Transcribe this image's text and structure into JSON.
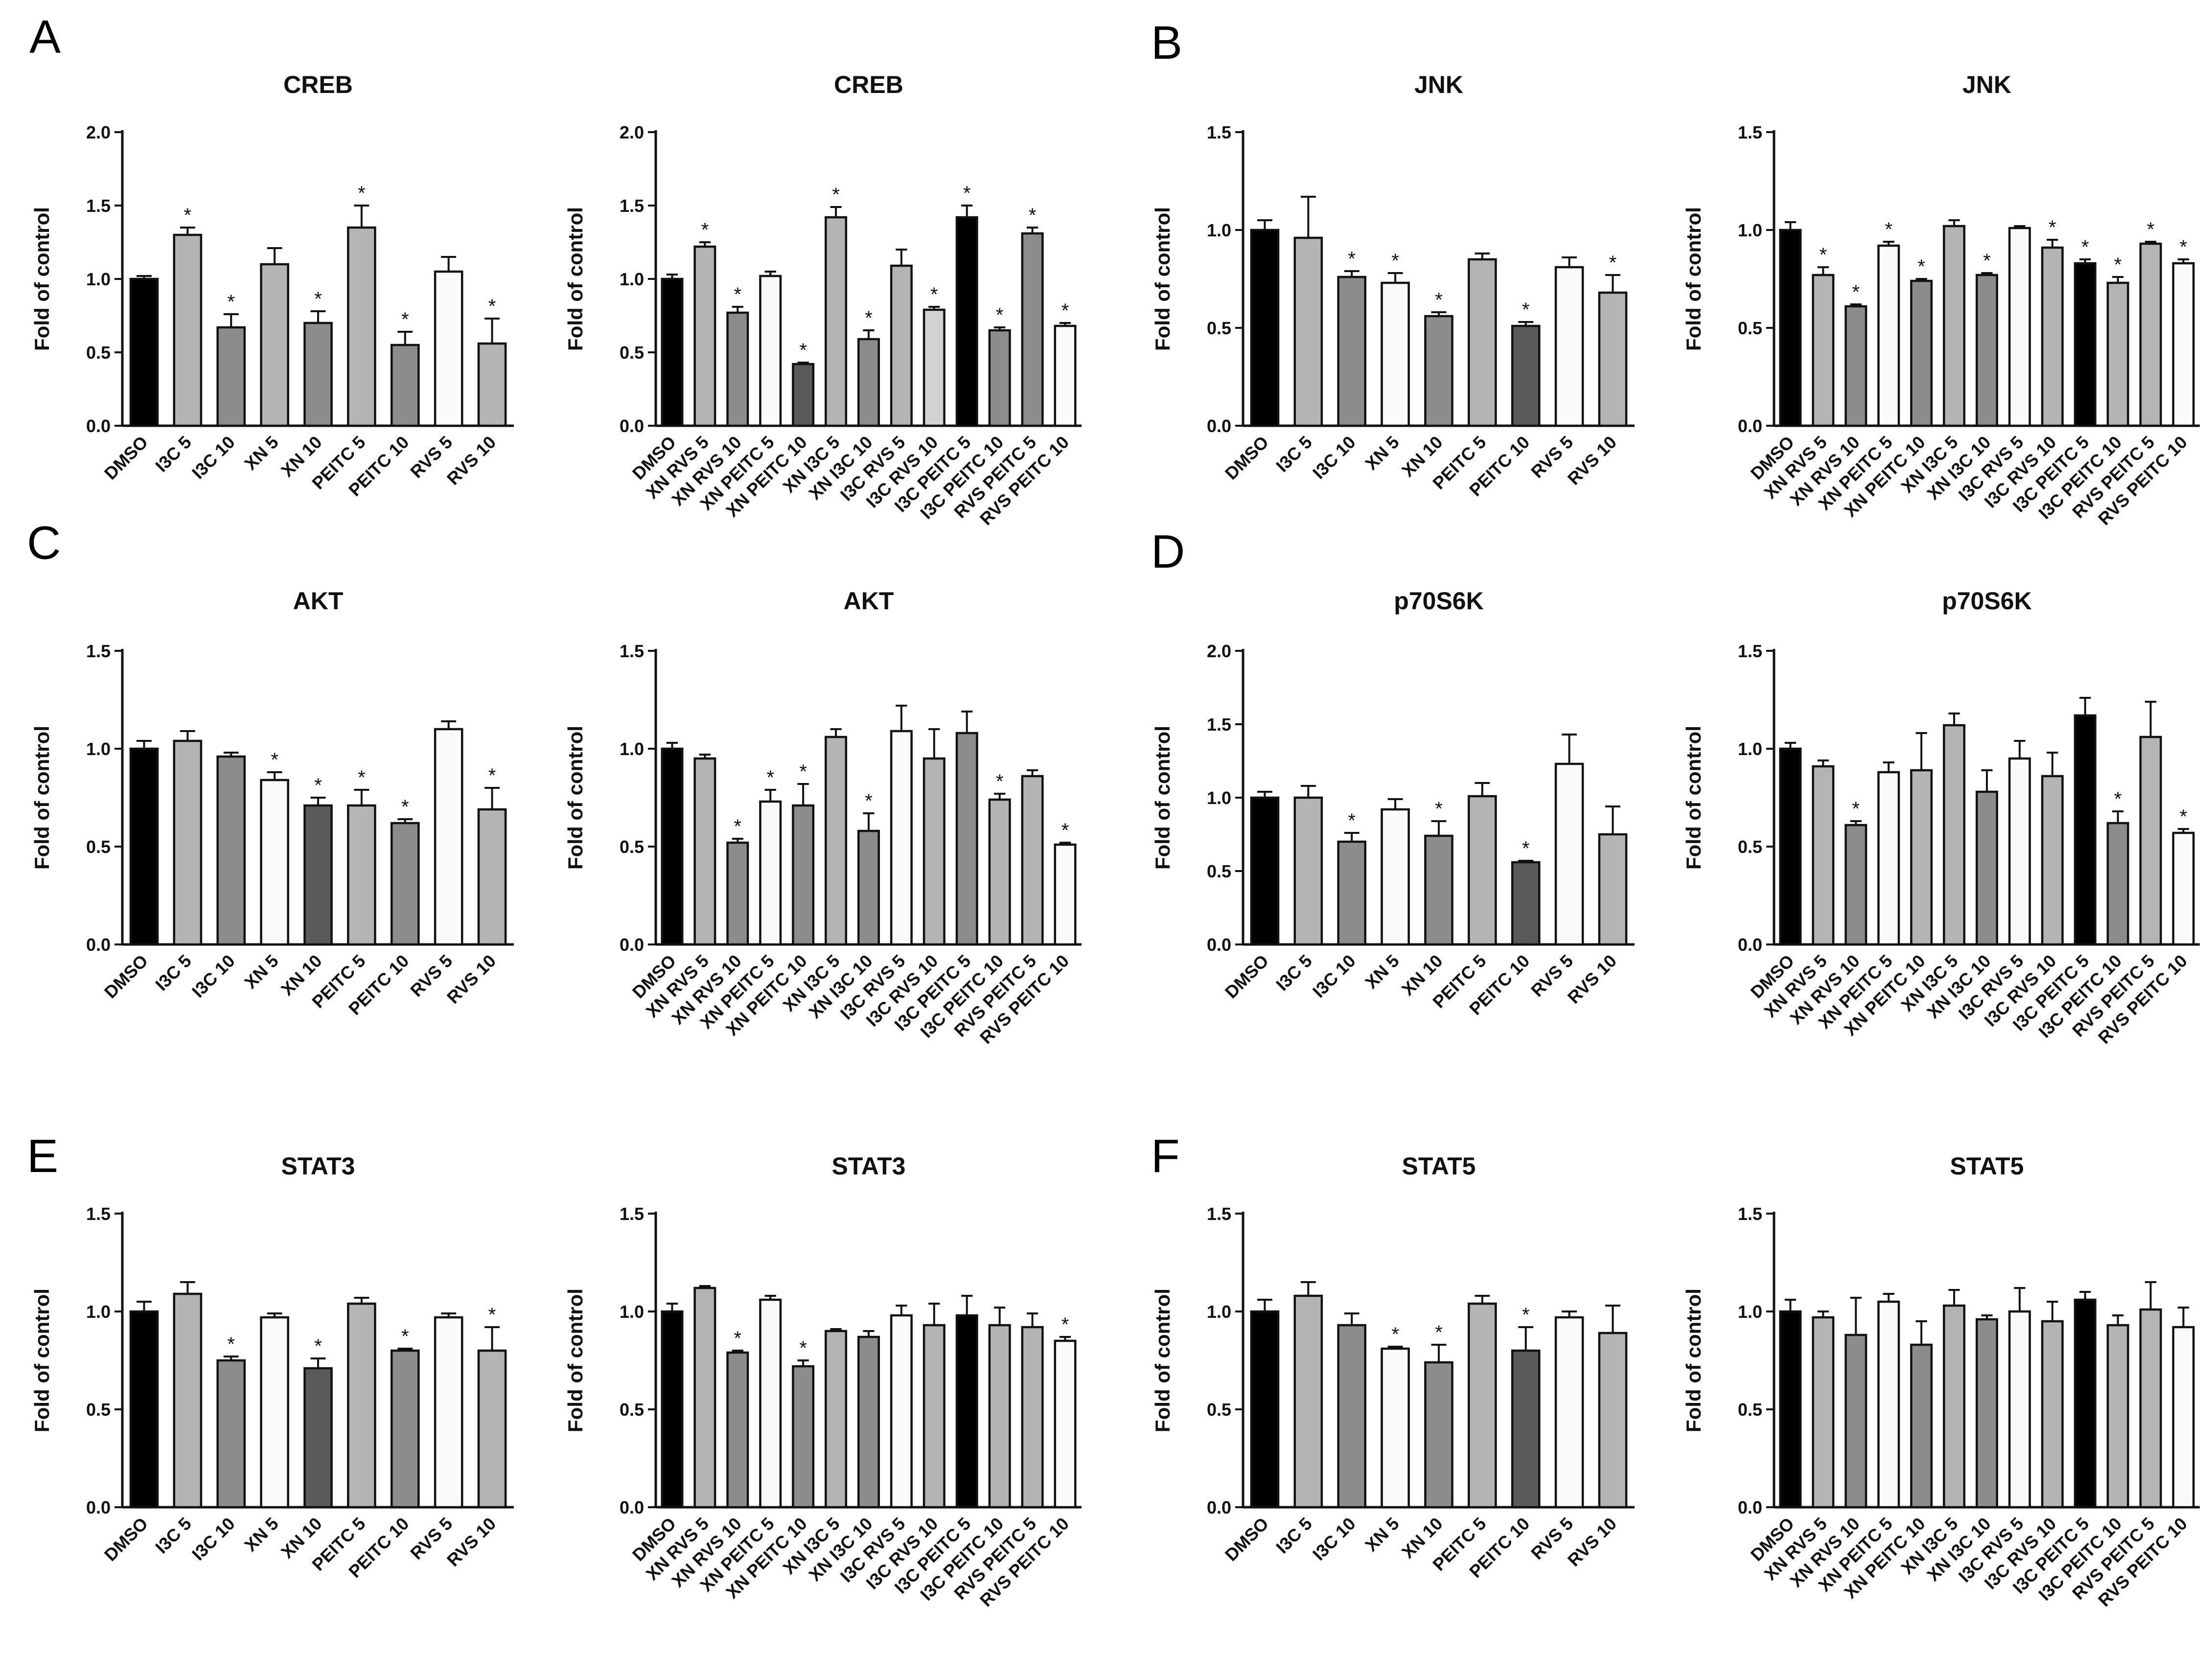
{
  "panels": [
    {
      "letter": "A"
    },
    {
      "letter": "B"
    },
    {
      "letter": "C"
    },
    {
      "letter": "D"
    },
    {
      "letter": "E"
    },
    {
      "letter": "F"
    }
  ],
  "colors": {
    "black": "#000000",
    "light": "#b4b4b4",
    "mid": "#8c8c8c",
    "white": "#fafafa",
    "dark": "#5a5a5a",
    "pale": "#d2d2d2"
  },
  "chart_data": [
    {
      "type": "bar",
      "panel": "A",
      "title": "CREB",
      "ylabel": "Fold of control",
      "ylim": [
        0,
        2.0
      ],
      "yticks": [
        "0.0",
        "0.5",
        "1.0",
        "1.5",
        "2.0"
      ],
      "categories": [
        "DMSO",
        "I3C 5",
        "I3C 10",
        "XN 5",
        "XN 10",
        "PEITC 5",
        "PEITC 10",
        "RVS 5",
        "RVS 10"
      ],
      "values": [
        1.0,
        1.3,
        0.67,
        1.1,
        0.7,
        1.35,
        0.55,
        1.05,
        0.56
      ],
      "errors": [
        0.02,
        0.05,
        0.09,
        0.11,
        0.08,
        0.15,
        0.09,
        0.1,
        0.17
      ],
      "significant": [
        false,
        true,
        true,
        false,
        true,
        true,
        true,
        false,
        true
      ],
      "bar_colors": [
        "black",
        "light",
        "mid",
        "light",
        "mid",
        "light",
        "mid",
        "white",
        "light"
      ]
    },
    {
      "type": "bar",
      "panel": "A",
      "title": "CREB",
      "ylabel": "Fold of control",
      "ylim": [
        0,
        2.0
      ],
      "yticks": [
        "0.0",
        "0.5",
        "1.0",
        "1.5",
        "2.0"
      ],
      "categories": [
        "DMSO",
        "XN RVS 5",
        "XN RVS 10",
        "XN PEITC 5",
        "XN PEITC 10",
        "XN I3C 5",
        "XN I3C 10",
        "I3C RVS 5",
        "I3C RVS 10",
        "I3C PEITC 5",
        "I3C PEITC 10",
        "RVS PEITC 5",
        "RVS PEITC 10"
      ],
      "values": [
        1.0,
        1.22,
        0.77,
        1.02,
        0.42,
        1.42,
        0.59,
        1.09,
        0.79,
        1.42,
        0.65,
        1.31,
        0.68
      ],
      "errors": [
        0.03,
        0.03,
        0.04,
        0.03,
        0.01,
        0.07,
        0.06,
        0.11,
        0.02,
        0.08,
        0.02,
        0.04,
        0.02
      ],
      "significant": [
        false,
        true,
        true,
        false,
        true,
        true,
        true,
        false,
        true,
        true,
        true,
        true,
        true
      ],
      "bar_colors": [
        "black",
        "light",
        "mid",
        "white",
        "dark",
        "light",
        "mid",
        "light",
        "pale",
        "black",
        "mid",
        "mid",
        "white"
      ]
    },
    {
      "type": "bar",
      "panel": "B",
      "title": "JNK",
      "ylabel": "Fold of control",
      "ylim": [
        0,
        1.5
      ],
      "yticks": [
        "0.0",
        "0.5",
        "1.0",
        "1.5"
      ],
      "categories": [
        "DMSO",
        "I3C 5",
        "I3C 10",
        "XN 5",
        "XN 10",
        "PEITC 5",
        "PEITC 10",
        "RVS 5",
        "RVS 10"
      ],
      "values": [
        1.0,
        0.96,
        0.76,
        0.73,
        0.56,
        0.85,
        0.51,
        0.81,
        0.68
      ],
      "errors": [
        0.05,
        0.21,
        0.03,
        0.05,
        0.02,
        0.03,
        0.02,
        0.05,
        0.09
      ],
      "significant": [
        false,
        false,
        true,
        true,
        true,
        false,
        true,
        false,
        true
      ],
      "bar_colors": [
        "black",
        "light",
        "mid",
        "white",
        "mid",
        "light",
        "dark",
        "white",
        "light"
      ]
    },
    {
      "type": "bar",
      "panel": "B",
      "title": "JNK",
      "ylabel": "Fold of control",
      "ylim": [
        0,
        1.5
      ],
      "yticks": [
        "0.0",
        "0.5",
        "1.0",
        "1.5"
      ],
      "categories": [
        "DMSO",
        "XN RVS 5",
        "XN RVS 10",
        "XN PEITC 5",
        "XN PEITC 10",
        "XN I3C 5",
        "XN I3C 10",
        "I3C RVS 5",
        "I3C RVS 10",
        "I3C PEITC 5",
        "I3C PEITC 10",
        "RVS PEITC 5",
        "RVS PEITC 10"
      ],
      "values": [
        1.0,
        0.77,
        0.61,
        0.92,
        0.74,
        1.02,
        0.77,
        1.01,
        0.91,
        0.83,
        0.73,
        0.93,
        0.83
      ],
      "errors": [
        0.04,
        0.04,
        0.01,
        0.02,
        0.01,
        0.03,
        0.01,
        0.01,
        0.04,
        0.02,
        0.03,
        0.01,
        0.02
      ],
      "significant": [
        false,
        true,
        true,
        true,
        true,
        false,
        true,
        false,
        true,
        true,
        true,
        true,
        true
      ],
      "bar_colors": [
        "black",
        "light",
        "mid",
        "white",
        "mid",
        "light",
        "mid",
        "white",
        "light",
        "black",
        "light",
        "light",
        "white"
      ]
    },
    {
      "type": "bar",
      "panel": "C",
      "title": "AKT",
      "ylabel": "Fold of control",
      "ylim": [
        0,
        1.5
      ],
      "yticks": [
        "0.0",
        "0.5",
        "1.0",
        "1.5"
      ],
      "categories": [
        "DMSO",
        "I3C 5",
        "I3C 10",
        "XN 5",
        "XN 10",
        "PEITC 5",
        "PEITC 10",
        "RVS 5",
        "RVS 10"
      ],
      "values": [
        1.0,
        1.04,
        0.96,
        0.84,
        0.71,
        0.71,
        0.62,
        1.1,
        0.69
      ],
      "errors": [
        0.04,
        0.05,
        0.02,
        0.04,
        0.04,
        0.08,
        0.02,
        0.04,
        0.11
      ],
      "significant": [
        false,
        false,
        false,
        true,
        true,
        true,
        true,
        false,
        true
      ],
      "bar_colors": [
        "black",
        "light",
        "mid",
        "white",
        "dark",
        "light",
        "mid",
        "white",
        "light"
      ]
    },
    {
      "type": "bar",
      "panel": "C",
      "title": "AKT",
      "ylabel": "Fold of control",
      "ylim": [
        0,
        1.5
      ],
      "yticks": [
        "0.0",
        "0.5",
        "1.0",
        "1.5"
      ],
      "categories": [
        "DMSO",
        "XN RVS 5",
        "XN RVS 10",
        "XN PEITC 5",
        "XN PEITC 10",
        "XN I3C 5",
        "XN I3C 10",
        "I3C RVS 5",
        "I3C RVS 10",
        "I3C PEITC 5",
        "I3C PEITC 10",
        "RVS PEITC 5",
        "RVS PEITC 10"
      ],
      "values": [
        1.0,
        0.95,
        0.52,
        0.73,
        0.71,
        1.06,
        0.58,
        1.09,
        0.95,
        1.08,
        0.74,
        0.86,
        0.51
      ],
      "errors": [
        0.03,
        0.02,
        0.02,
        0.06,
        0.11,
        0.04,
        0.09,
        0.13,
        0.15,
        0.11,
        0.03,
        0.03,
        0.01
      ],
      "significant": [
        false,
        false,
        true,
        true,
        true,
        false,
        true,
        false,
        false,
        false,
        true,
        false,
        true
      ],
      "bar_colors": [
        "black",
        "light",
        "mid",
        "white",
        "mid",
        "light",
        "mid",
        "white",
        "light",
        "mid",
        "light",
        "light",
        "white"
      ]
    },
    {
      "type": "bar",
      "panel": "D",
      "title": "p70S6K",
      "ylabel": "Fold of control",
      "ylim": [
        0,
        2.0
      ],
      "yticks": [
        "0.0",
        "0.5",
        "1.0",
        "1.5",
        "2.0"
      ],
      "categories": [
        "DMSO",
        "I3C 5",
        "I3C 10",
        "XN 5",
        "XN 10",
        "PEITC 5",
        "PEITC 10",
        "RVS 5",
        "RVS 10"
      ],
      "values": [
        1.0,
        1.0,
        0.7,
        0.92,
        0.74,
        1.01,
        0.56,
        1.23,
        0.75
      ],
      "errors": [
        0.04,
        0.08,
        0.06,
        0.07,
        0.1,
        0.09,
        0.01,
        0.2,
        0.19
      ],
      "significant": [
        false,
        false,
        true,
        false,
        true,
        false,
        true,
        false,
        false
      ],
      "bar_colors": [
        "black",
        "light",
        "mid",
        "white",
        "mid",
        "light",
        "dark",
        "white",
        "light"
      ]
    },
    {
      "type": "bar",
      "panel": "D",
      "title": "p70S6K",
      "ylabel": "Fold of control",
      "ylim": [
        0,
        1.5
      ],
      "yticks": [
        "0.0",
        "0.5",
        "1.0",
        "1.5"
      ],
      "categories": [
        "DMSO",
        "XN RVS 5",
        "XN RVS 10",
        "XN PEITC 5",
        "XN PEITC 10",
        "XN I3C 5",
        "XN I3C 10",
        "I3C RVS 5",
        "I3C RVS 10",
        "I3C PEITC 5",
        "I3C PEITC 10",
        "RVS PEITC 5",
        "RVS PEITC 10"
      ],
      "values": [
        1.0,
        0.91,
        0.61,
        0.88,
        0.89,
        1.12,
        0.78,
        0.95,
        0.86,
        1.17,
        0.62,
        1.06,
        0.57
      ],
      "errors": [
        0.03,
        0.03,
        0.02,
        0.05,
        0.19,
        0.06,
        0.11,
        0.09,
        0.12,
        0.09,
        0.06,
        0.18,
        0.02
      ],
      "significant": [
        false,
        false,
        true,
        false,
        false,
        false,
        false,
        false,
        false,
        false,
        true,
        false,
        true
      ],
      "bar_colors": [
        "black",
        "light",
        "mid",
        "white",
        "light",
        "light",
        "mid",
        "white",
        "light",
        "black",
        "mid",
        "light",
        "white"
      ]
    },
    {
      "type": "bar",
      "panel": "E",
      "title": "STAT3",
      "ylabel": "Fold of control",
      "ylim": [
        0,
        1.5
      ],
      "yticks": [
        "0.0",
        "0.5",
        "1.0",
        "1.5"
      ],
      "categories": [
        "DMSO",
        "I3C 5",
        "I3C 10",
        "XN 5",
        "XN 10",
        "PEITC 5",
        "PEITC 10",
        "RVS 5",
        "RVS 10"
      ],
      "values": [
        1.0,
        1.09,
        0.75,
        0.97,
        0.71,
        1.04,
        0.8,
        0.97,
        0.8
      ],
      "errors": [
        0.05,
        0.06,
        0.02,
        0.02,
        0.05,
        0.03,
        0.01,
        0.02,
        0.12
      ],
      "significant": [
        false,
        false,
        true,
        false,
        true,
        false,
        true,
        false,
        true
      ],
      "bar_colors": [
        "black",
        "light",
        "mid",
        "white",
        "dark",
        "light",
        "mid",
        "white",
        "light"
      ]
    },
    {
      "type": "bar",
      "panel": "E",
      "title": "STAT3",
      "ylabel": "Fold of control",
      "ylim": [
        0,
        1.5
      ],
      "yticks": [
        "0.0",
        "0.5",
        "1.0",
        "1.5"
      ],
      "categories": [
        "DMSO",
        "XN RVS 5",
        "XN RVS 10",
        "XN PEITC 5",
        "XN PEITC 10",
        "XN I3C 5",
        "XN I3C 10",
        "I3C RVS 5",
        "I3C RVS 10",
        "I3C PEITC 5",
        "I3C PEITC 10",
        "RVS PEITC 5",
        "RVS PEITC 10"
      ],
      "values": [
        1.0,
        1.12,
        0.79,
        1.06,
        0.72,
        0.9,
        0.87,
        0.98,
        0.93,
        0.98,
        0.93,
        0.92,
        0.85
      ],
      "errors": [
        0.04,
        0.01,
        0.01,
        0.02,
        0.03,
        0.01,
        0.03,
        0.05,
        0.11,
        0.1,
        0.09,
        0.07,
        0.02
      ],
      "significant": [
        false,
        false,
        true,
        false,
        true,
        false,
        false,
        false,
        false,
        false,
        false,
        false,
        true
      ],
      "bar_colors": [
        "black",
        "light",
        "mid",
        "white",
        "mid",
        "light",
        "mid",
        "white",
        "light",
        "black",
        "light",
        "light",
        "white"
      ]
    },
    {
      "type": "bar",
      "panel": "F",
      "title": "STAT5",
      "ylabel": "Fold of control",
      "ylim": [
        0,
        1.5
      ],
      "yticks": [
        "0.0",
        "0.5",
        "1.0",
        "1.5"
      ],
      "categories": [
        "DMSO",
        "I3C 5",
        "I3C 10",
        "XN 5",
        "XN 10",
        "PEITC 5",
        "PEITC 10",
        "RVS 5",
        "RVS 10"
      ],
      "values": [
        1.0,
        1.08,
        0.93,
        0.81,
        0.74,
        1.04,
        0.8,
        0.97,
        0.89
      ],
      "errors": [
        0.06,
        0.07,
        0.06,
        0.01,
        0.09,
        0.04,
        0.12,
        0.03,
        0.14
      ],
      "significant": [
        false,
        false,
        false,
        true,
        true,
        false,
        true,
        false,
        false
      ],
      "bar_colors": [
        "black",
        "light",
        "mid",
        "white",
        "mid",
        "light",
        "dark",
        "white",
        "light"
      ]
    },
    {
      "type": "bar",
      "panel": "F",
      "title": "STAT5",
      "ylabel": "Fold of control",
      "ylim": [
        0,
        1.5
      ],
      "yticks": [
        "0.0",
        "0.5",
        "1.0",
        "1.5"
      ],
      "categories": [
        "DMSO",
        "XN RVS 5",
        "XN RVS 10",
        "XN PEITC 5",
        "XN PEITC 10",
        "XN I3C 5",
        "XN I3C 10",
        "I3C RVS 5",
        "I3C RVS 10",
        "I3C PEITC 5",
        "I3C PEITC 10",
        "RVS PEITC 5",
        "RVS PEITC 10"
      ],
      "values": [
        1.0,
        0.97,
        0.88,
        1.05,
        0.83,
        1.03,
        0.96,
        1.0,
        0.95,
        1.06,
        0.93,
        1.01,
        0.92
      ],
      "errors": [
        0.06,
        0.03,
        0.19,
        0.04,
        0.12,
        0.08,
        0.02,
        0.12,
        0.1,
        0.04,
        0.05,
        0.14,
        0.1
      ],
      "significant": [
        false,
        false,
        false,
        false,
        false,
        false,
        false,
        false,
        false,
        false,
        false,
        false,
        false
      ],
      "bar_colors": [
        "black",
        "light",
        "mid",
        "white",
        "mid",
        "light",
        "mid",
        "white",
        "light",
        "black",
        "light",
        "light",
        "white"
      ]
    }
  ]
}
